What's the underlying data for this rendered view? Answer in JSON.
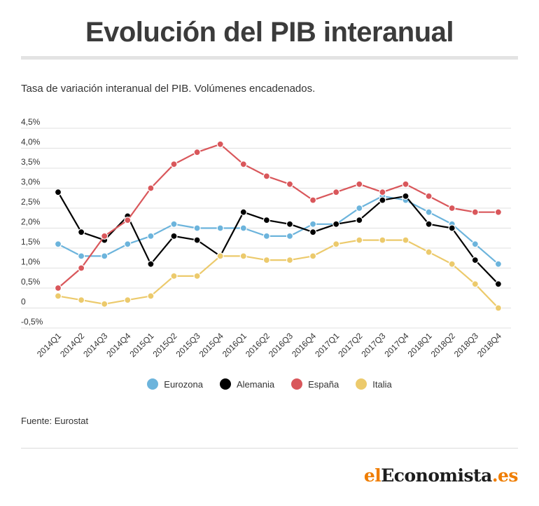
{
  "header": {
    "title": "Evolución del PIB interanual",
    "subtitle": "Tasa de variación interanual del PIB. Volúmenes encadenados."
  },
  "footer": {
    "source": "Fuente: Eurostat",
    "logo_el": "el",
    "logo_main": "Economista",
    "logo_suffix": ".es"
  },
  "chart_data": {
    "type": "line",
    "title": "",
    "xlabel": "",
    "ylabel": "",
    "ylim": [
      -0.5,
      4.5
    ],
    "yticks": [
      -0.5,
      0,
      0.5,
      1.0,
      1.5,
      2.0,
      2.5,
      3.0,
      3.5,
      4.0,
      4.5
    ],
    "ytick_labels": [
      "-0,5%",
      "0",
      "0,5%",
      "1,0%",
      "1,5%",
      "2,0%",
      "2,5%",
      "3,0%",
      "3,5%",
      "4,0%",
      "4,5%"
    ],
    "grid": true,
    "legend_position": "bottom-center",
    "categories": [
      "2014Q1",
      "2014Q2",
      "2014Q3",
      "2014Q4",
      "2015Q1",
      "2015Q2",
      "2015Q3",
      "2015Q4",
      "2016Q1",
      "2016Q2",
      "2016Q3",
      "2016Q4",
      "2017Q1",
      "2017Q2",
      "2017Q3",
      "2017Q4",
      "2018Q1",
      "2018Q2",
      "2018Q3",
      "2018Q4"
    ],
    "series": [
      {
        "name": "Eurozona",
        "color": "#6cb4dc",
        "values": [
          1.6,
          1.3,
          1.3,
          1.6,
          1.8,
          2.1,
          2.0,
          2.0,
          2.0,
          1.8,
          1.8,
          2.1,
          2.1,
          2.5,
          2.8,
          2.7,
          2.4,
          2.1,
          1.6,
          1.1
        ]
      },
      {
        "name": "Alemania",
        "color": "#000000",
        "values": [
          2.9,
          1.9,
          1.7,
          2.3,
          1.1,
          1.8,
          1.7,
          1.3,
          2.4,
          2.2,
          2.1,
          1.9,
          2.1,
          2.2,
          2.7,
          2.8,
          2.1,
          2.0,
          1.2,
          0.6
        ]
      },
      {
        "name": "España",
        "color": "#d9575b",
        "values": [
          0.5,
          1.0,
          1.8,
          2.2,
          3.0,
          3.6,
          3.9,
          4.1,
          3.6,
          3.3,
          3.1,
          2.7,
          2.9,
          3.1,
          2.9,
          3.1,
          2.8,
          2.5,
          2.4,
          2.4
        ]
      },
      {
        "name": "Italia",
        "color": "#ecca6c",
        "values": [
          0.3,
          0.2,
          0.1,
          0.2,
          0.3,
          0.8,
          0.8,
          1.3,
          1.3,
          1.2,
          1.2,
          1.3,
          1.6,
          1.7,
          1.7,
          1.7,
          1.4,
          1.1,
          0.6,
          0.0
        ]
      }
    ]
  }
}
